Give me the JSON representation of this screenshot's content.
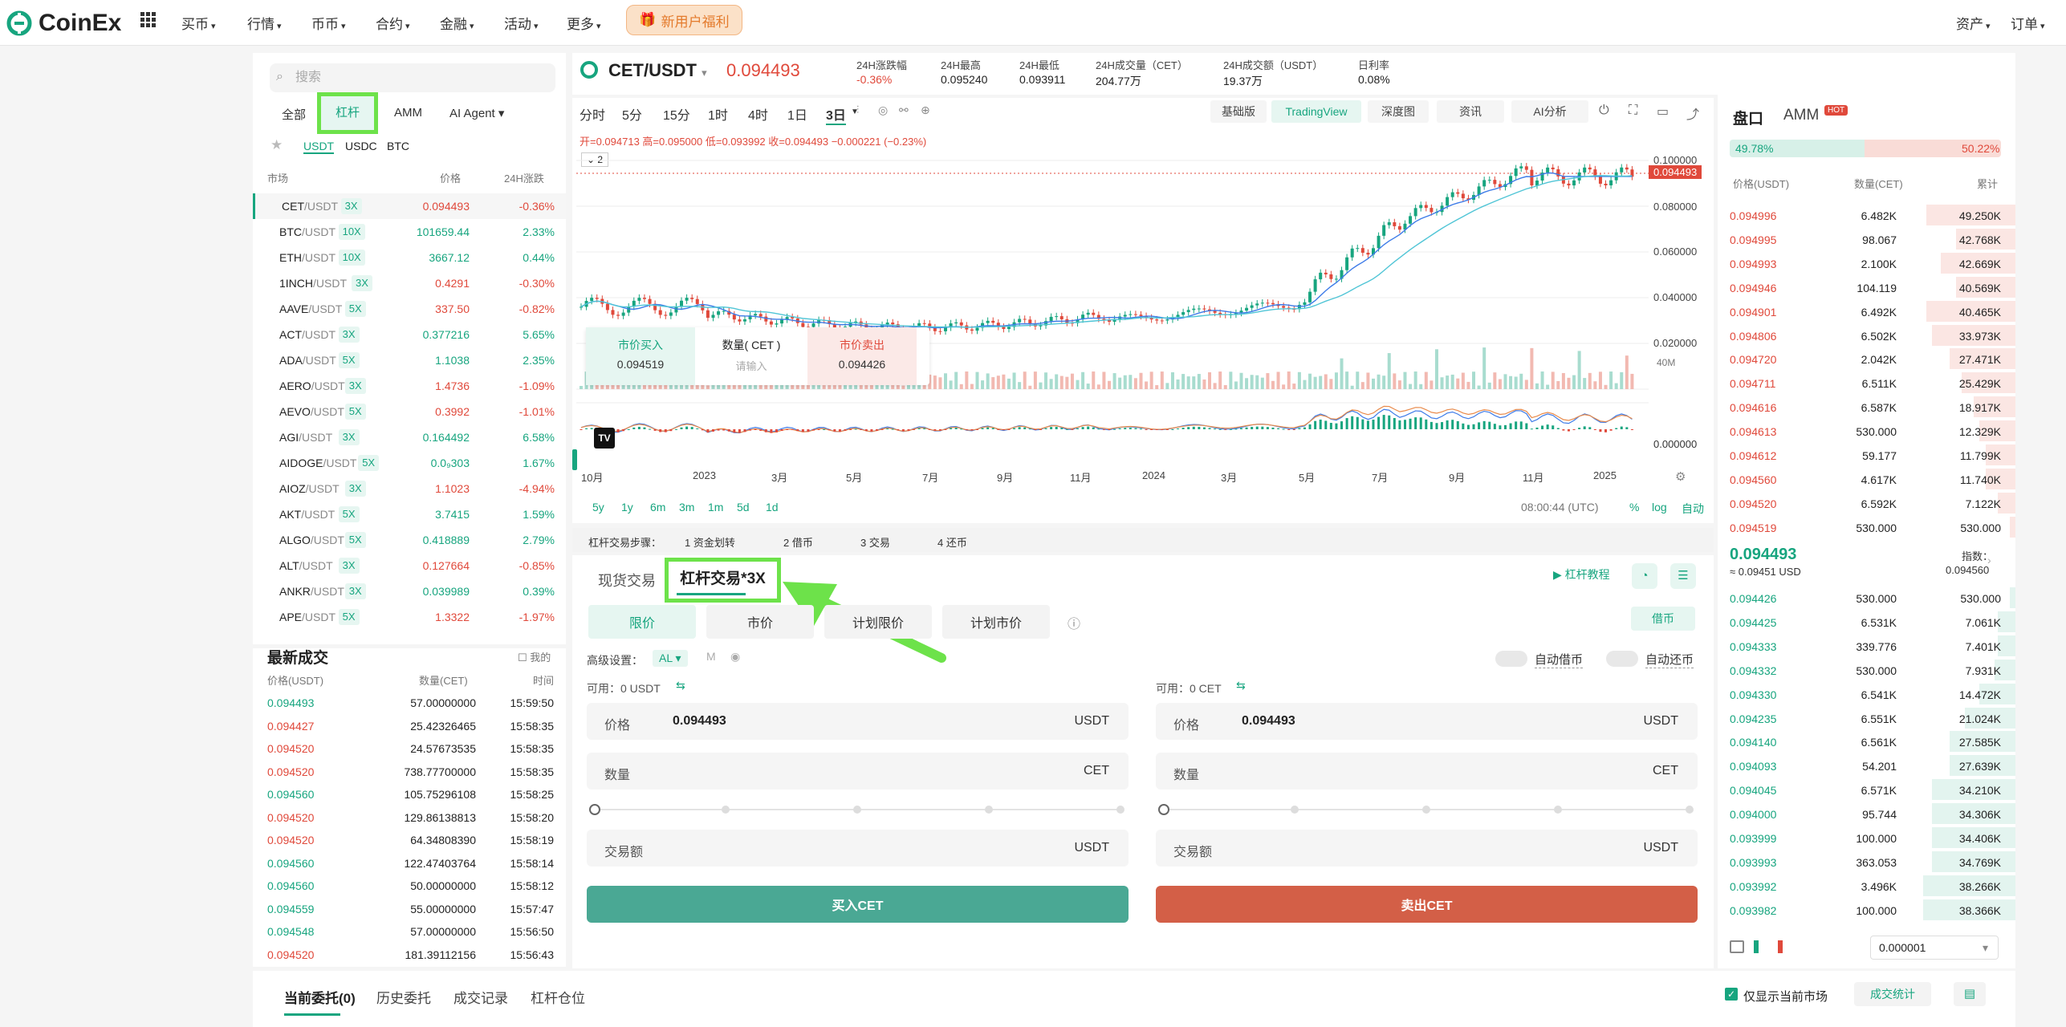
{
  "nav": {
    "brand": "CoinEx",
    "items": [
      "买币",
      "行情",
      "币币",
      "合约",
      "金融",
      "活动",
      "更多"
    ],
    "promo": "新用户福利",
    "right": [
      "资产",
      "订单"
    ]
  },
  "left": {
    "search_placeholder": "搜索",
    "tabs": [
      "全部",
      "杠杆",
      "AMM",
      "AI Agent"
    ],
    "quotes": [
      "USDT",
      "USDC",
      "BTC"
    ],
    "cols": [
      "市场",
      "价格",
      "24H涨跌"
    ],
    "markets": [
      {
        "b": "CET",
        "q": "/USDT",
        "lev": "3X",
        "price": "0.094493",
        "chg": "-0.36%",
        "up": false
      },
      {
        "b": "BTC",
        "q": "/USDT",
        "lev": "10X",
        "price": "101659.44",
        "chg": "2.33%",
        "up": true
      },
      {
        "b": "ETH",
        "q": "/USDT",
        "lev": "10X",
        "price": "3667.12",
        "chg": "0.44%",
        "up": true
      },
      {
        "b": "1INCH",
        "q": "/USDT",
        "lev": "3X",
        "price": "0.4291",
        "chg": "-0.30%",
        "up": false
      },
      {
        "b": "AAVE",
        "q": "/USDT",
        "lev": "5X",
        "price": "337.50",
        "chg": "-0.82%",
        "up": false
      },
      {
        "b": "ACT",
        "q": "/USDT",
        "lev": "3X",
        "price": "0.377216",
        "chg": "5.65%",
        "up": true
      },
      {
        "b": "ADA",
        "q": "/USDT",
        "lev": "5X",
        "price": "1.1038",
        "chg": "2.35%",
        "up": true
      },
      {
        "b": "AERO",
        "q": "/USDT",
        "lev": "3X",
        "price": "1.4736",
        "chg": "-1.09%",
        "up": false
      },
      {
        "b": "AEVO",
        "q": "/USDT",
        "lev": "5X",
        "price": "0.3992",
        "chg": "-1.01%",
        "up": false
      },
      {
        "b": "AGI",
        "q": "/USDT",
        "lev": "3X",
        "price": "0.164492",
        "chg": "6.58%",
        "up": true
      },
      {
        "b": "AIDOGE",
        "q": "/USDT",
        "lev": "5X",
        "price": "0.0₉303",
        "chg": "1.67%",
        "up": true
      },
      {
        "b": "AIOZ",
        "q": "/USDT",
        "lev": "3X",
        "price": "1.1023",
        "chg": "-4.94%",
        "up": false
      },
      {
        "b": "AKT",
        "q": "/USDT",
        "lev": "5X",
        "price": "3.7415",
        "chg": "1.59%",
        "up": true
      },
      {
        "b": "ALGO",
        "q": "/USDT",
        "lev": "5X",
        "price": "0.418889",
        "chg": "2.79%",
        "up": true
      },
      {
        "b": "ALT",
        "q": "/USDT",
        "lev": "3X",
        "price": "0.127664",
        "chg": "-0.85%",
        "up": false
      },
      {
        "b": "ANKR",
        "q": "/USDT",
        "lev": "3X",
        "price": "0.039989",
        "chg": "0.39%",
        "up": true
      },
      {
        "b": "APE",
        "q": "/USDT",
        "lev": "5X",
        "price": "1.3322",
        "chg": "-1.97%",
        "up": false
      }
    ]
  },
  "trades": {
    "title": "最新成交",
    "mine": "我的",
    "cols": [
      "价格(USDT)",
      "数量(CET)",
      "时间"
    ],
    "rows": [
      {
        "p": "0.094493",
        "q": "57.00000000",
        "t": "15:59:50",
        "up": true
      },
      {
        "p": "0.094427",
        "q": "25.42326465",
        "t": "15:58:35",
        "up": false
      },
      {
        "p": "0.094520",
        "q": "24.57673535",
        "t": "15:58:35",
        "up": false
      },
      {
        "p": "0.094520",
        "q": "738.77700000",
        "t": "15:58:35",
        "up": false
      },
      {
        "p": "0.094560",
        "q": "105.75296108",
        "t": "15:58:25",
        "up": true
      },
      {
        "p": "0.094520",
        "q": "129.86138813",
        "t": "15:58:20",
        "up": false
      },
      {
        "p": "0.094520",
        "q": "64.34808390",
        "t": "15:58:19",
        "up": false
      },
      {
        "p": "0.094560",
        "q": "122.47403764",
        "t": "15:58:14",
        "up": true
      },
      {
        "p": "0.094560",
        "q": "50.00000000",
        "t": "15:58:12",
        "up": true
      },
      {
        "p": "0.094559",
        "q": "55.00000000",
        "t": "15:57:47",
        "up": true
      },
      {
        "p": "0.094548",
        "q": "57.00000000",
        "t": "15:56:50",
        "up": true
      },
      {
        "p": "0.094520",
        "q": "181.39112156",
        "t": "15:56:43",
        "up": false
      }
    ]
  },
  "ticker": {
    "pair": "CET/USDT",
    "price": "0.094493",
    "stats": [
      {
        "l": "24H涨跌幅",
        "v": "-0.36%"
      },
      {
        "l": "24H最高",
        "v": "0.095240"
      },
      {
        "l": "24H最低",
        "v": "0.093911"
      },
      {
        "l": "24H成交量（CET）",
        "v": "204.77万"
      },
      {
        "l": "24H成交额（USDT）",
        "v": "19.37万"
      },
      {
        "l": "日利率",
        "v": "0.08%"
      }
    ]
  },
  "chart": {
    "intervals": [
      "分时",
      "5分",
      "15分",
      "1时",
      "4时",
      "1日",
      "3日"
    ],
    "views": [
      "基础版",
      "TradingView",
      "深度图",
      "资讯",
      "AI分析"
    ],
    "ohlc": "开=0.094713 高=0.095000 低=0.093992 收=0.094493 −0.000221 (−0.23%)",
    "yticks": [
      "0.100000",
      "0.080000",
      "0.060000",
      "0.040000",
      "0.020000"
    ],
    "last": "0.094493",
    "vol": "40M",
    "macd0": "0.000000",
    "xticks": [
      "10月",
      "2023",
      "3月",
      "5月",
      "7月",
      "9月",
      "11月",
      "2024",
      "3月",
      "5月",
      "7月",
      "9月",
      "11月",
      "2025"
    ],
    "ranges": [
      "5y",
      "1y",
      "6m",
      "3m",
      "1m",
      "5d",
      "1d"
    ],
    "time": "08:00:44 (UTC)",
    "opts": [
      "%",
      "log",
      "自动"
    ],
    "quick": {
      "buy": "市价买入",
      "buy_p": "0.094519",
      "qty": "数量( CET )",
      "qty_ph": "请输入",
      "sell": "市价卖出",
      "sell_p": "0.094426"
    },
    "indicator": "2"
  },
  "steps": {
    "title": "杠杆交易步骤：",
    "items": [
      "1  资金划转",
      "2  借币",
      "3  交易",
      "4  还币"
    ]
  },
  "trade": {
    "tabs": [
      "现货交易",
      "杠杆交易*3X"
    ],
    "tutorial": "杠杆教程",
    "types": [
      "限价",
      "市价",
      "计划限价",
      "计划市价"
    ],
    "borrow": "借币",
    "adv": "高级设置：",
    "adv_opts": [
      "AL",
      "M"
    ],
    "auto_borrow": "自动借币",
    "auto_repay": "自动还币",
    "buy": {
      "avail_l": "可用：",
      "avail": "0 USDT",
      "price_l": "价格",
      "price": "0.094493",
      "price_u": "USDT",
      "qty_l": "数量",
      "qty_u": "CET",
      "amt_l": "交易额",
      "amt_u": "USDT",
      "btn": "买入CET"
    },
    "sell": {
      "avail_l": "可用：",
      "avail": "0 CET",
      "price_l": "价格",
      "price": "0.094493",
      "price_u": "USDT",
      "qty_l": "数量",
      "qty_u": "CET",
      "amt_l": "交易额",
      "amt_u": "USDT",
      "btn": "卖出CET"
    }
  },
  "book": {
    "tabs": [
      "盘口",
      "AMM"
    ],
    "hot": "HOT",
    "buy_pct": "49.78%",
    "sell_pct": "50.22%",
    "cols": [
      "价格(USDT)",
      "数量(CET)",
      "累计"
    ],
    "asks": [
      [
        "0.094996",
        "6.482K",
        "49.250K",
        0.3
      ],
      [
        "0.094995",
        "98.067",
        "42.768K",
        0.2
      ],
      [
        "0.094993",
        "2.100K",
        "42.669K",
        0.25
      ],
      [
        "0.094946",
        "104.119",
        "40.569K",
        0.2
      ],
      [
        "0.094901",
        "6.492K",
        "40.465K",
        0.3
      ],
      [
        "0.094806",
        "6.502K",
        "33.973K",
        0.28
      ],
      [
        "0.094720",
        "2.042K",
        "27.471K",
        0.22
      ],
      [
        "0.094711",
        "6.511K",
        "25.429K",
        0.18
      ],
      [
        "0.094616",
        "6.587K",
        "18.917K",
        0.14
      ],
      [
        "0.094613",
        "530.000",
        "12.329K",
        0.12
      ],
      [
        "0.094612",
        "59.177",
        "11.799K",
        0.1
      ],
      [
        "0.094560",
        "4.617K",
        "11.740K",
        0.1
      ],
      [
        "0.094520",
        "6.592K",
        "7.122K",
        0.06
      ],
      [
        "0.094519",
        "530.000",
        "530.000",
        0.02
      ]
    ],
    "mid": "0.094493",
    "mid_sub": "≈ 0.09451 USD",
    "index_l": "指数：",
    "index": "0.094560",
    "bids": [
      [
        "0.094426",
        "530.000",
        "530.000",
        0.02
      ],
      [
        "0.094425",
        "6.531K",
        "7.061K",
        0.06
      ],
      [
        "0.094333",
        "339.776",
        "7.401K",
        0.06
      ],
      [
        "0.094332",
        "530.000",
        "7.931K",
        0.07
      ],
      [
        "0.094330",
        "6.541K",
        "14.472K",
        0.12
      ],
      [
        "0.094235",
        "6.551K",
        "21.024K",
        0.17
      ],
      [
        "0.094140",
        "6.561K",
        "27.585K",
        0.22
      ],
      [
        "0.094093",
        "54.201",
        "27.639K",
        0.22
      ],
      [
        "0.094045",
        "6.571K",
        "34.210K",
        0.28
      ],
      [
        "0.094000",
        "95.744",
        "34.306K",
        0.28
      ],
      [
        "0.093999",
        "100.000",
        "34.406K",
        0.28
      ],
      [
        "0.093993",
        "363.053",
        "34.769K",
        0.28
      ],
      [
        "0.093992",
        "3.496K",
        "38.266K",
        0.31
      ],
      [
        "0.093982",
        "100.000",
        "38.366K",
        0.31
      ]
    ],
    "precision": "0.000001"
  },
  "orders": {
    "tabs": [
      "当前委托(0)",
      "历史委托",
      "成交记录",
      "杠杆仓位"
    ],
    "only": "仅显示当前市场",
    "stats": "成交统计"
  },
  "colors": {
    "green": "#17a57f",
    "red": "#e0493b",
    "highlight": "#6de24a"
  }
}
